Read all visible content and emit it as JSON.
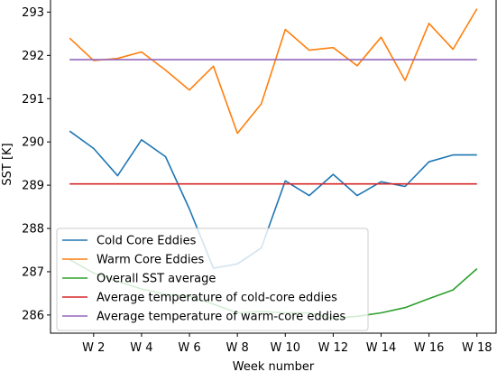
{
  "chart_data": {
    "type": "line",
    "xlabel": "Week number",
    "ylabel": "SST [K]",
    "x": [
      1,
      2,
      3,
      4,
      5,
      6,
      7,
      8,
      9,
      10,
      11,
      12,
      13,
      14,
      15,
      16,
      17,
      18
    ],
    "xticks": [
      {
        "value": 2,
        "label": "W 2"
      },
      {
        "value": 4,
        "label": "W 4"
      },
      {
        "value": 6,
        "label": "W 6"
      },
      {
        "value": 8,
        "label": "W 8"
      },
      {
        "value": 10,
        "label": "W 10"
      },
      {
        "value": 12,
        "label": "W 12"
      },
      {
        "value": 14,
        "label": "W 14"
      },
      {
        "value": 16,
        "label": "W 16"
      },
      {
        "value": 18,
        "label": "W 18"
      }
    ],
    "yticks": [
      286,
      287,
      288,
      289,
      290,
      291,
      292,
      293
    ],
    "xlim": [
      0.2,
      18.8
    ],
    "ylim": [
      285.58,
      293.28
    ],
    "legend_placement": "lower-left",
    "grid": false,
    "series": [
      {
        "name": "Cold Core Eddies",
        "color": "#1f77b4",
        "values": [
          290.25,
          289.85,
          289.22,
          290.05,
          289.66,
          288.45,
          287.08,
          287.18,
          287.55,
          289.1,
          288.76,
          289.25,
          288.76,
          289.08,
          288.97,
          289.54,
          289.7,
          289.7
        ]
      },
      {
        "name": "Warm Core Eddies",
        "color": "#ff7f0e",
        "values": [
          292.4,
          291.88,
          291.93,
          292.08,
          291.66,
          291.2,
          291.75,
          290.2,
          290.88,
          292.6,
          292.12,
          292.18,
          291.76,
          292.42,
          291.42,
          292.74,
          292.14,
          293.08
        ]
      },
      {
        "name": "Overall SST average",
        "color": "#2ca02c",
        "values": [
          287.28,
          286.97,
          286.78,
          286.6,
          286.48,
          286.43,
          286.25,
          286.05,
          286.08,
          286.05,
          286.05,
          285.92,
          285.97,
          286.05,
          286.17,
          286.38,
          286.58,
          287.07
        ]
      },
      {
        "name": "Average temperature of cold-core eddies",
        "color": "#d62728",
        "values": [
          289.03,
          289.03,
          289.03,
          289.03,
          289.03,
          289.03,
          289.03,
          289.03,
          289.03,
          289.03,
          289.03,
          289.03,
          289.03,
          289.03,
          289.03,
          289.03,
          289.03,
          289.03
        ]
      },
      {
        "name": "Average temperature of warm-core eddies",
        "color": "#9467bd",
        "values": [
          291.9,
          291.9,
          291.9,
          291.9,
          291.9,
          291.9,
          291.9,
          291.9,
          291.9,
          291.9,
          291.9,
          291.9,
          291.9,
          291.9,
          291.9,
          291.9,
          291.9,
          291.9
        ]
      }
    ]
  }
}
